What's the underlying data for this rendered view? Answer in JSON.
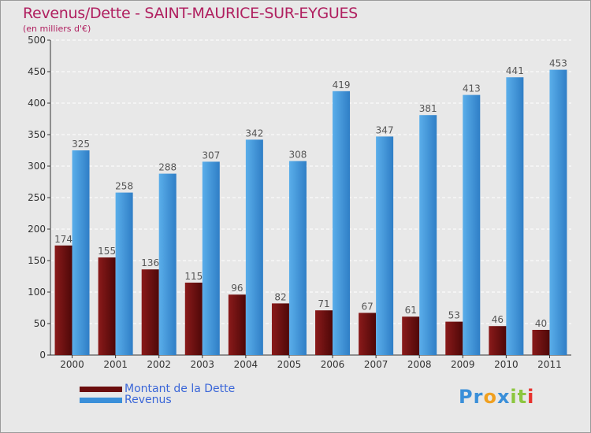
{
  "header": {
    "title": "Revenus/Dette - SAINT-MAURICE-SUR-EYGUES",
    "subtitle": "(en milliers d'€)"
  },
  "legend": {
    "items": [
      {
        "label": "Montant de la Dette",
        "color": "#6b0d0d"
      },
      {
        "label": "Revenus",
        "color": "#3a8fd9"
      }
    ]
  },
  "logo": {
    "letters": [
      "P",
      "r",
      "o",
      "x",
      "i",
      "t",
      "i"
    ],
    "colors": [
      "#3a8fd9",
      "#3a8fd9",
      "#f0a020",
      "#3a8fd9",
      "#8cc63f",
      "#8cc63f",
      "#e8322e"
    ]
  },
  "chart_data": {
    "type": "bar",
    "categories": [
      "2000",
      "2001",
      "2002",
      "2003",
      "2004",
      "2005",
      "2006",
      "2007",
      "2008",
      "2009",
      "2010",
      "2011"
    ],
    "series": [
      {
        "name": "Montant de la Dette",
        "color": "#6b0d0d",
        "values": [
          174,
          155,
          136,
          115,
          96,
          82,
          71,
          67,
          61,
          53,
          46,
          40
        ]
      },
      {
        "name": "Revenus",
        "color": "#3a8fd9",
        "values": [
          325,
          258,
          288,
          307,
          342,
          308,
          419,
          347,
          381,
          413,
          441,
          453
        ]
      }
    ],
    "yticks": [
      0,
      50,
      100,
      150,
      200,
      250,
      300,
      350,
      400,
      450,
      500
    ],
    "ylim": [
      0,
      500
    ],
    "grid": true
  }
}
